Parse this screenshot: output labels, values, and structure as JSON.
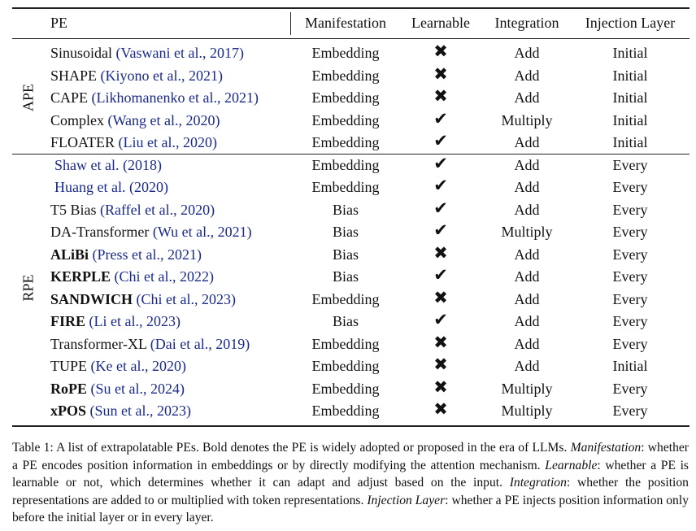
{
  "table": {
    "header": [
      "PE",
      "Manifestation",
      "Learnable",
      "Integration",
      "Injection Layer"
    ],
    "groups": [
      {
        "label": "APE",
        "rows": [
          {
            "name": "Sinusoidal",
            "cite": "(Vaswani et al., 2017)",
            "bold": false,
            "manifestation": "Embedding",
            "learnable": "✖",
            "integration": "Add",
            "injection": "Initial"
          },
          {
            "name": "SHAPE",
            "cite": "(Kiyono et al., 2021)",
            "bold": false,
            "manifestation": "Embedding",
            "learnable": "✖",
            "integration": "Add",
            "injection": "Initial"
          },
          {
            "name": "CAPE",
            "cite": "(Likhomanenko et al., 2021)",
            "bold": false,
            "manifestation": "Embedding",
            "learnable": "✖",
            "integration": "Add",
            "injection": "Initial"
          },
          {
            "name": "Complex",
            "cite": "(Wang et al., 2020)",
            "bold": false,
            "manifestation": "Embedding",
            "learnable": "✔",
            "integration": "Multiply",
            "injection": "Initial"
          },
          {
            "name": "FLOATER",
            "cite": "(Liu et al., 2020)",
            "bold": false,
            "manifestation": "Embedding",
            "learnable": "✔",
            "integration": "Add",
            "injection": "Initial"
          }
        ]
      },
      {
        "label": "RPE",
        "rows": [
          {
            "cite": "Shaw et al. (2018)",
            "bold": false,
            "manifestation": "Embedding",
            "learnable": "✔",
            "integration": "Add",
            "injection": "Every"
          },
          {
            "cite": "Huang et al. (2020)",
            "bold": false,
            "manifestation": "Embedding",
            "learnable": "✔",
            "integration": "Add",
            "injection": "Every"
          },
          {
            "name": "T5 Bias",
            "cite": "(Raffel et al., 2020)",
            "bold": false,
            "manifestation": "Bias",
            "learnable": "✔",
            "integration": "Add",
            "injection": "Every"
          },
          {
            "name": "DA-Transformer",
            "cite": "(Wu et al., 2021)",
            "bold": false,
            "manifestation": "Bias",
            "learnable": "✔",
            "integration": "Multiply",
            "injection": "Every"
          },
          {
            "name": "ALiBi",
            "cite": "(Press et al., 2021)",
            "bold": true,
            "manifestation": "Bias",
            "learnable": "✖",
            "integration": "Add",
            "injection": "Every"
          },
          {
            "name": "KERPLE",
            "cite": "(Chi et al., 2022)",
            "bold": true,
            "manifestation": "Bias",
            "learnable": "✔",
            "integration": "Add",
            "injection": "Every"
          },
          {
            "name": "SANDWICH",
            "cite": "(Chi et al., 2023)",
            "bold": true,
            "manifestation": "Embedding",
            "learnable": "✖",
            "integration": "Add",
            "injection": "Every"
          },
          {
            "name": "FIRE",
            "cite": "(Li et al., 2023)",
            "bold": true,
            "manifestation": "Bias",
            "learnable": "✔",
            "integration": "Add",
            "injection": "Every"
          },
          {
            "name": "Transformer-XL",
            "cite": "(Dai et al., 2019)",
            "bold": false,
            "manifestation": "Embedding",
            "learnable": "✖",
            "integration": "Add",
            "injection": "Every"
          },
          {
            "name": "TUPE",
            "cite": "(Ke et al., 2020)",
            "bold": false,
            "manifestation": "Embedding",
            "learnable": "✖",
            "integration": "Add",
            "injection": "Initial"
          },
          {
            "name": "RoPE",
            "cite": "(Su et al., 2024)",
            "bold": true,
            "manifestation": "Embedding",
            "learnable": "✖",
            "integration": "Multiply",
            "injection": "Every"
          },
          {
            "name": "xPOS",
            "cite": "(Sun et al., 2023)",
            "bold": true,
            "manifestation": "Embedding",
            "learnable": "✖",
            "integration": "Multiply",
            "injection": "Every"
          }
        ]
      }
    ]
  },
  "caption": [
    {
      "text": "Table 1: A list of extrapolatable PEs. Bold denotes the PE is widely adopted or proposed in the era of LLMs. ",
      "italic": false
    },
    {
      "text": "Manifestation",
      "italic": true
    },
    {
      "text": ": whether a PE encodes position information in embeddings or by directly modifying the attention mechanism. ",
      "italic": false
    },
    {
      "text": "Learnable",
      "italic": true
    },
    {
      "text": ": whether a PE is learnable or not, which determines whether it can adapt and adjust based on the input. ",
      "italic": false
    },
    {
      "text": "Integration",
      "italic": true
    },
    {
      "text": ": whether the position representations are added to or multiplied with token representations. ",
      "italic": false
    },
    {
      "text": "Injection Layer",
      "italic": true
    },
    {
      "text": ": whether a PE injects position information only before the initial layer or in every layer.",
      "italic": false
    }
  ]
}
